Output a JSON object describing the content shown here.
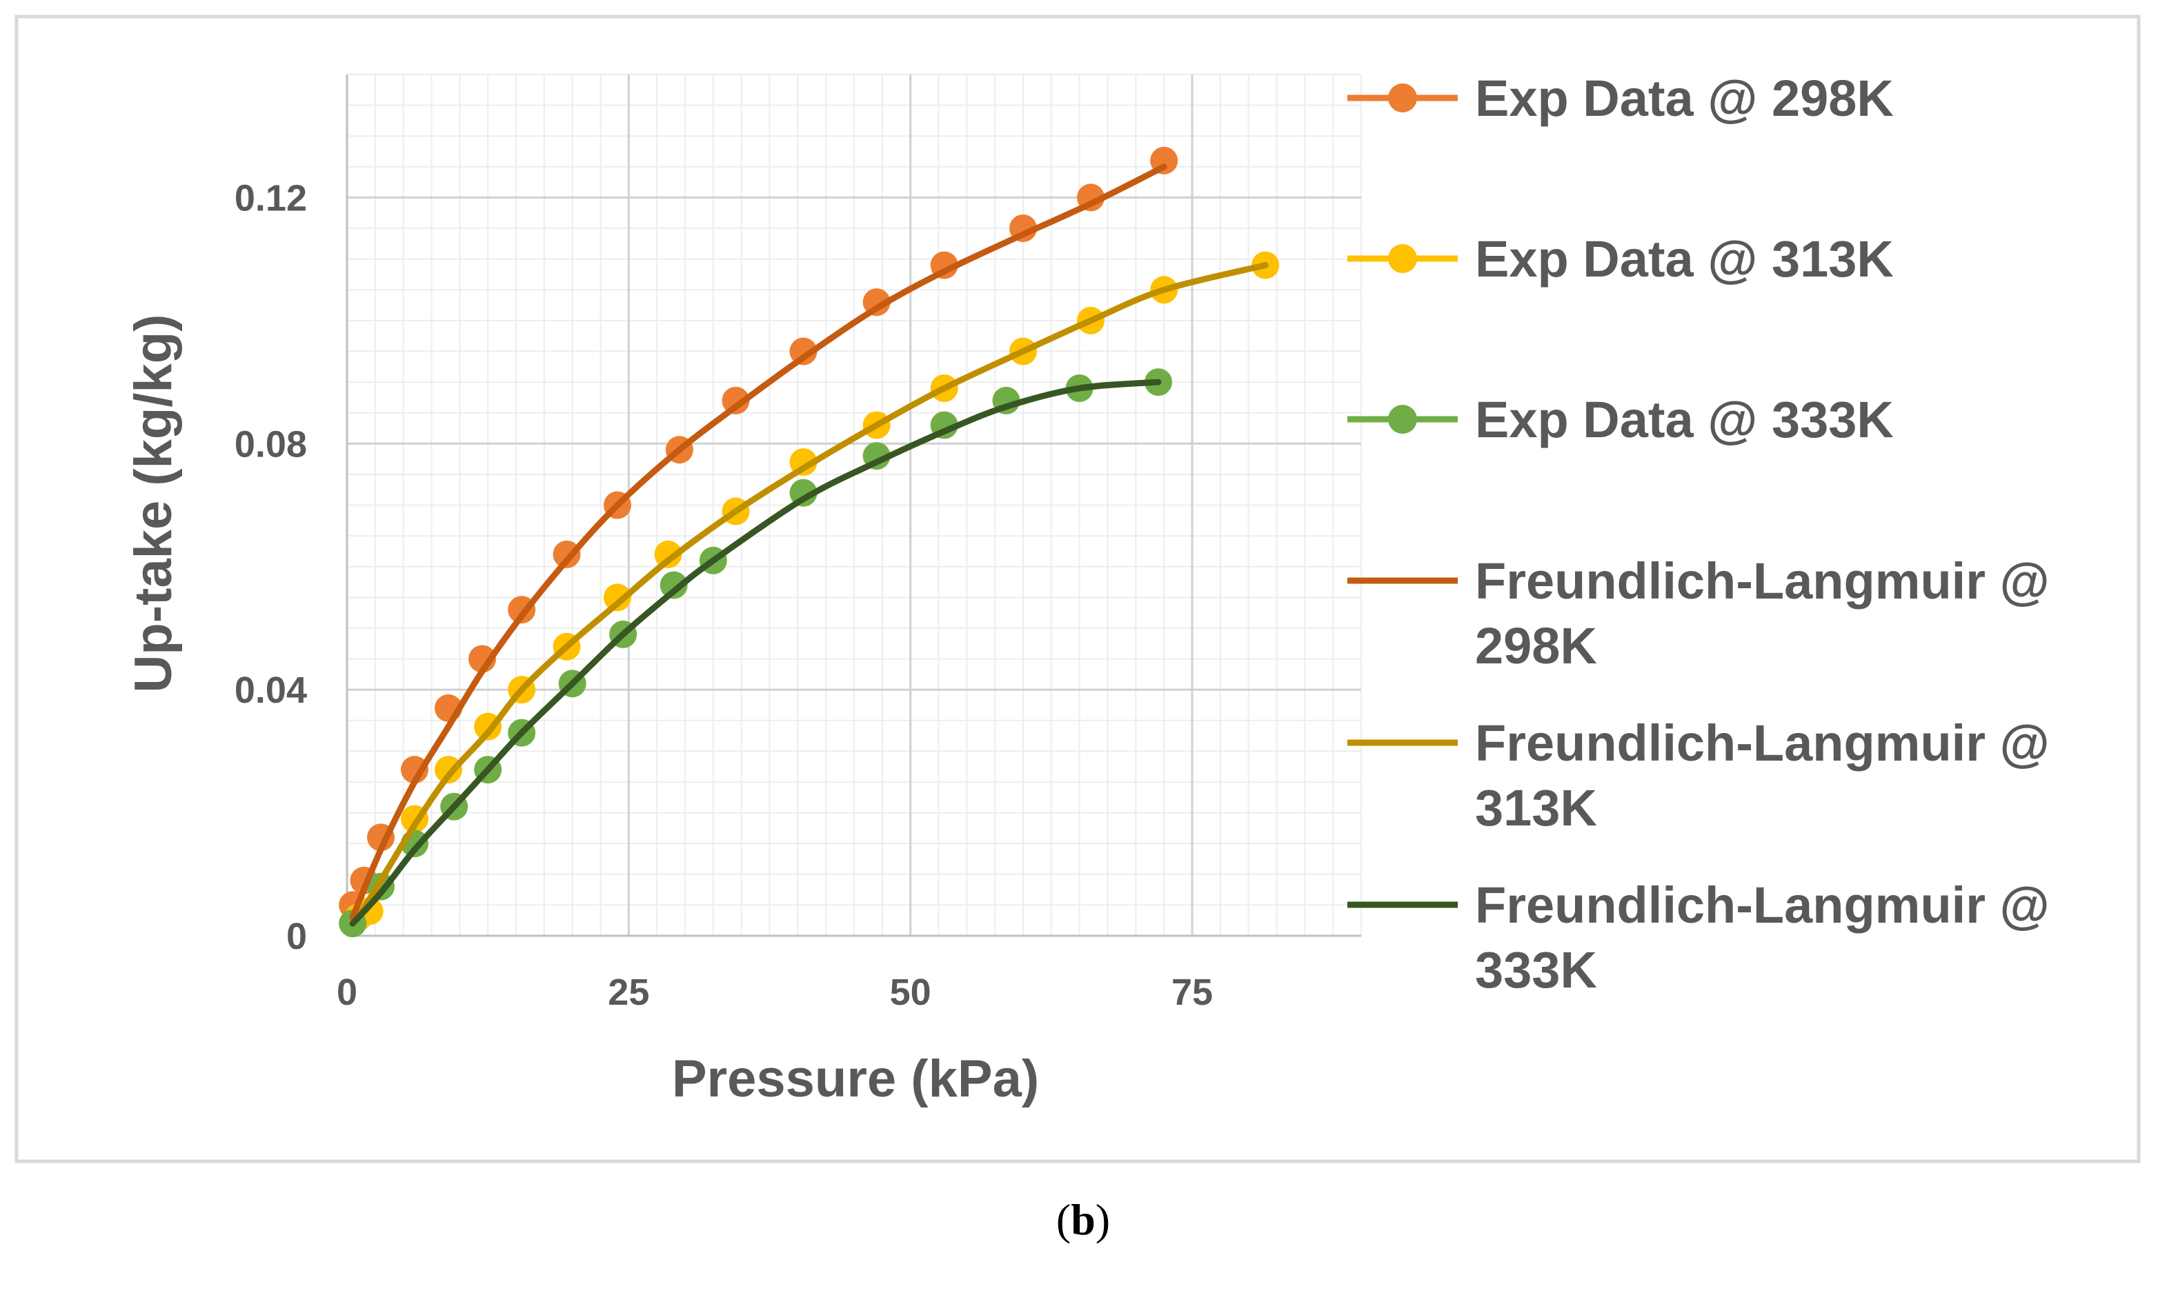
{
  "caption": {
    "open": "(",
    "letter": "b",
    "close": ")"
  },
  "chart_data": {
    "type": "scatter",
    "title": "",
    "xlabel": "Pressure (kPa)",
    "ylabel": "Up-take (kg/kg)",
    "xlim": [
      0,
      90
    ],
    "ylim": [
      0,
      0.14
    ],
    "x_ticks": [
      0,
      25,
      50,
      75
    ],
    "x_tick_labels": [
      "0",
      "25",
      "50",
      "75"
    ],
    "y_ticks": [
      0,
      0.04,
      0.08,
      0.12
    ],
    "y_tick_labels": [
      "0",
      "0.04",
      "0.08",
      "0.12"
    ],
    "grid": true,
    "legend_position": "right",
    "series": [
      {
        "name": "Exp Data @ 298K",
        "kind": "markers",
        "color": "#ED7D31",
        "x": [
          0.5,
          1.5,
          3,
          6,
          9,
          12,
          15.5,
          19.5,
          24,
          29.5,
          34.5,
          40.5,
          47,
          53,
          60,
          66,
          72.5
        ],
        "y": [
          0.005,
          0.009,
          0.016,
          0.027,
          0.037,
          0.045,
          0.053,
          0.062,
          0.07,
          0.079,
          0.087,
          0.095,
          0.103,
          0.109,
          0.115,
          0.12,
          0.126
        ]
      },
      {
        "name": "Exp Data @ 313K",
        "kind": "markers",
        "color": "#FFC000",
        "x": [
          1,
          2,
          6,
          9,
          12.5,
          15.5,
          19.5,
          24,
          28.5,
          34.5,
          40.5,
          47,
          53,
          60,
          66,
          72.5,
          81.5
        ],
        "y": [
          0.003,
          0.004,
          0.019,
          0.027,
          0.034,
          0.04,
          0.047,
          0.055,
          0.062,
          0.069,
          0.077,
          0.083,
          0.089,
          0.095,
          0.1,
          0.105,
          0.109
        ]
      },
      {
        "name": "Exp Data @ 333K",
        "kind": "markers",
        "color": "#70AD47",
        "x": [
          0.5,
          3,
          6,
          9.5,
          12.5,
          15.5,
          20,
          24.5,
          29,
          32.5,
          40.5,
          47,
          53,
          58.5,
          65,
          72
        ],
        "y": [
          0.002,
          0.008,
          0.015,
          0.021,
          0.027,
          0.033,
          0.041,
          0.049,
          0.057,
          0.061,
          0.072,
          0.078,
          0.083,
          0.087,
          0.089,
          0.09
        ]
      },
      {
        "name": "Freundlich-Langmuir @ 298K",
        "legend_lines": [
          "Freundlich-Langmuir @",
          "298K"
        ],
        "kind": "line",
        "color": "#C55A11",
        "x": [
          0.5,
          3,
          6,
          9,
          12,
          15.5,
          19.5,
          24,
          29.5,
          34.5,
          40.5,
          47,
          53,
          60,
          66,
          72.5
        ],
        "y": [
          0.003,
          0.014,
          0.025,
          0.034,
          0.043,
          0.052,
          0.061,
          0.07,
          0.079,
          0.086,
          0.094,
          0.102,
          0.108,
          0.114,
          0.119,
          0.125
        ]
      },
      {
        "name": "Freundlich-Langmuir @ 313K",
        "legend_lines": [
          "Freundlich-Langmuir @",
          "313K"
        ],
        "kind": "line",
        "color": "#BF8F00",
        "x": [
          1,
          3,
          6,
          9,
          12.5,
          15.5,
          19.5,
          24,
          28.5,
          34.5,
          40.5,
          47,
          53,
          60,
          66,
          72.5,
          81.5
        ],
        "y": [
          0.003,
          0.009,
          0.018,
          0.026,
          0.033,
          0.04,
          0.047,
          0.054,
          0.061,
          0.069,
          0.076,
          0.083,
          0.089,
          0.095,
          0.1,
          0.105,
          0.109
        ]
      },
      {
        "name": "Freundlich-Langmuir @ 333K",
        "legend_lines": [
          "Freundlich-Langmuir @",
          "333K"
        ],
        "kind": "line",
        "color": "#375623",
        "x": [
          0.5,
          3,
          6,
          9.5,
          12.5,
          15.5,
          20,
          24.5,
          29,
          32.5,
          40.5,
          47,
          53,
          58.5,
          65,
          72
        ],
        "y": [
          0.002,
          0.007,
          0.014,
          0.021,
          0.027,
          0.033,
          0.041,
          0.049,
          0.056,
          0.061,
          0.071,
          0.077,
          0.082,
          0.086,
          0.089,
          0.09
        ]
      }
    ]
  }
}
